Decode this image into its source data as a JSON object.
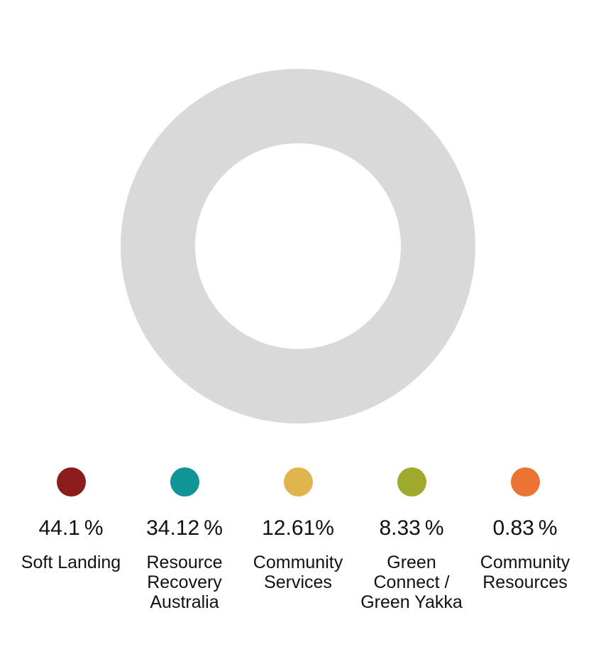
{
  "donut": {
    "ring_color": "#D9D9D9",
    "background": "#FFFFFF"
  },
  "chart_data": {
    "type": "pie",
    "subtype": "donut",
    "title": "",
    "legend_position": "bottom",
    "displayed_ring_color": "#D9D9D9",
    "unit": "%",
    "categories": [
      "Soft Landing",
      "Resource Recovery Australia",
      "Community Services",
      "Green Connect / Green Yakka",
      "Community Resources"
    ],
    "values": [
      44.1,
      34.12,
      12.61,
      8.33,
      0.83
    ],
    "items": [
      {
        "label": "Soft Landing",
        "percent_label": "44.1 %",
        "value": 44.1,
        "color": "#8E1B1B"
      },
      {
        "label": "Resource Recovery Australia",
        "percent_label": "34.12 %",
        "value": 34.12,
        "color": "#0F9598"
      },
      {
        "label": "Community Services",
        "percent_label": "12.61%",
        "value": 12.61,
        "color": "#E0B54D"
      },
      {
        "label": "Green Connect / Green Yakka",
        "percent_label": "8.33 %",
        "value": 8.33,
        "color": "#9FAA2D"
      },
      {
        "label": "Community Resources",
        "percent_label": "0.83 %",
        "value": 0.83,
        "color": "#EB7334"
      }
    ]
  }
}
